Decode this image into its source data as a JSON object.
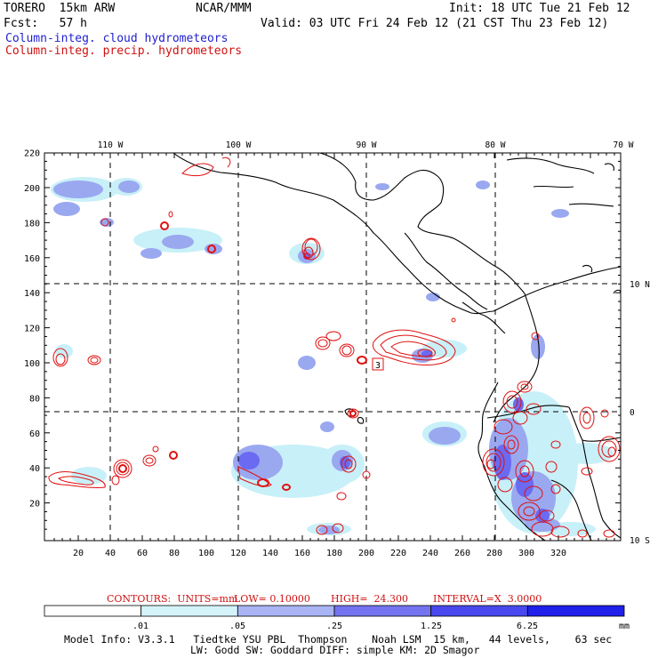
{
  "header": {
    "model": "TORERO  15km ARW",
    "org": "NCAR/MMM",
    "init": "Init: 18 UTC Tue 21 Feb 12",
    "fcst": "Fcst:   57 h",
    "valid": "Valid: 03 UTC Fri 24 Feb 12 (21 CST Thu 23 Feb 12)",
    "field_blue": "Column-integ. cloud hydrometeors",
    "field_red": "Column-integ. precip. hydrometeors"
  },
  "map": {
    "lon_labels": [
      "110 W",
      "100 W",
      "90 W",
      "80 W",
      "70 W"
    ],
    "lat_labels": [
      "10 N",
      "0",
      "10 S"
    ],
    "x_ticks": [
      "20",
      "40",
      "60",
      "80",
      "100",
      "120",
      "140",
      "160",
      "180",
      "200",
      "220",
      "240",
      "260",
      "280",
      "300",
      "320"
    ],
    "y_ticks": [
      "20",
      "40",
      "60",
      "80",
      "100",
      "120",
      "140",
      "160",
      "180",
      "200",
      "220"
    ],
    "marker_label": "3",
    "colors": {
      "cloud_light": "#c8f0f8",
      "cloud_mid": "#9aa8f0",
      "cloud_dark": "#6a6af2",
      "cloud_deep": "#3a3aee",
      "precip": "#e01010",
      "coast": "#000000"
    }
  },
  "contour_info": {
    "units": "CONTOURS:  UNITS=mm",
    "low": "LOW= 0.10000",
    "high": "HIGH=  24.300",
    "interval": "INTERVAL=X  3.0000"
  },
  "colorbar": {
    "labels": [
      ".01",
      ".05",
      ".25",
      "1.25",
      "6.25"
    ],
    "unit": "mm",
    "colors": [
      "#ffffff",
      "#d4f4fa",
      "#a8b4f4",
      "#7474f0",
      "#4848ee",
      "#2020ea"
    ]
  },
  "model_info": {
    "line1": "Model Info: V3.3.1   Tiedtke YSU PBL  Thompson    Noah LSM  15 km,   44 levels,    63 sec",
    "line2": "LW: Godd SW: Goddard DIFF: simple KM: 2D Smagor"
  }
}
